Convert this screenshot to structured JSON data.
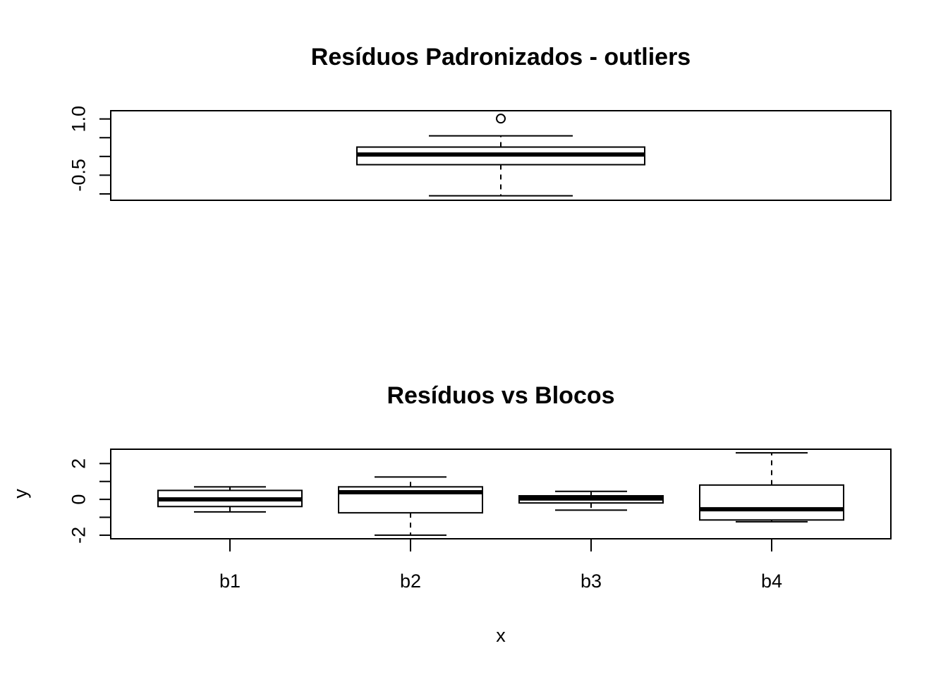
{
  "chart_data": [
    {
      "type": "boxplot",
      "title": "Resíduos Padronizados - outliers",
      "xlabel": "",
      "ylabel": "",
      "ylim": [
        -1.17,
        1.22
      ],
      "yticks": [
        -1.0,
        -0.5,
        0.0,
        0.5,
        1.0
      ],
      "ytick_labels": [
        "",
        "-0.5",
        "",
        "",
        "1.0"
      ],
      "grid": false,
      "series": [
        {
          "whisker_low": -1.05,
          "q1": -0.22,
          "median": 0.05,
          "q3": 0.25,
          "whisker_high": 0.55,
          "outliers": [
            1.01
          ]
        }
      ]
    },
    {
      "type": "boxplot",
      "title": "Resíduos vs Blocos",
      "xlabel": "x",
      "ylabel": "y",
      "ylim": [
        -2.2,
        2.8
      ],
      "yticks": [
        -2,
        -1,
        0,
        1,
        2
      ],
      "ytick_labels": [
        "-2",
        "",
        "0",
        "",
        "2"
      ],
      "categories": [
        "b1",
        "b2",
        "b3",
        "b4"
      ],
      "grid": false,
      "series": [
        {
          "name": "b1",
          "whisker_low": -0.7,
          "q1": -0.4,
          "median": 0.0,
          "q3": 0.5,
          "whisker_high": 0.7,
          "outliers": []
        },
        {
          "name": "b2",
          "whisker_low": -2.0,
          "q1": -0.75,
          "median": 0.4,
          "q3": 0.7,
          "whisker_high": 1.25,
          "outliers": []
        },
        {
          "name": "b3",
          "whisker_low": -0.6,
          "q1": -0.2,
          "median": 0.05,
          "q3": 0.2,
          "whisker_high": 0.45,
          "outliers": []
        },
        {
          "name": "b4",
          "whisker_low": -1.25,
          "q1": -1.15,
          "median": -0.55,
          "q3": 0.8,
          "whisker_high": 2.6,
          "outliers": []
        }
      ]
    }
  ]
}
